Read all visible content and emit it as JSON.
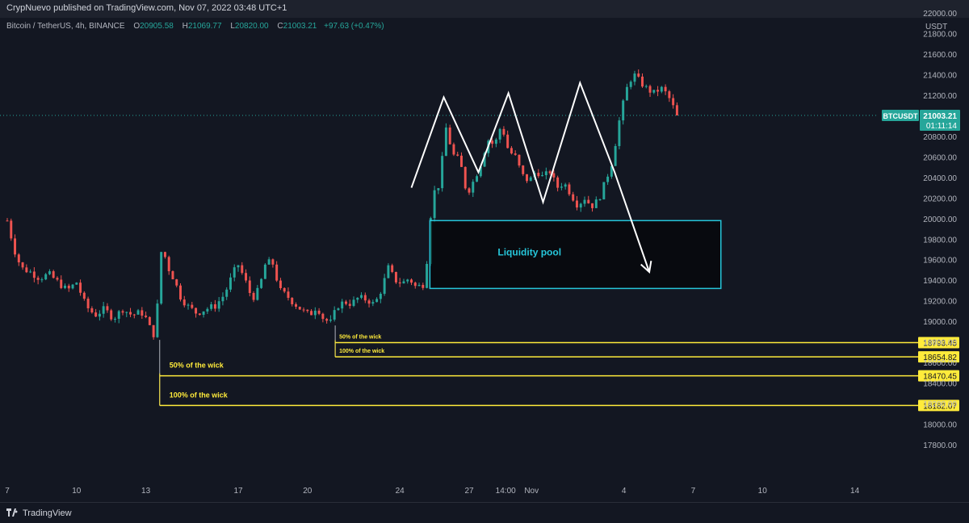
{
  "header": {
    "publisher": "CrypNuevo published on TradingView.com, Nov 07, 2022 03:48 UTC+1"
  },
  "legend": {
    "symbol": "Bitcoin / TetherUS, 4h, BINANCE",
    "open_label": "O",
    "open": "20905.58",
    "high_label": "H",
    "high": "21069.77",
    "low_label": "L",
    "low": "20820.00",
    "close_label": "C",
    "close": "21003.21",
    "change": "+97.63 (+0.47%)"
  },
  "footer": {
    "logo_text": "TradingView",
    "logo_icon": "tradingview-logo-icon"
  },
  "colors": {
    "background": "#131722",
    "up": "#26a69a",
    "down": "#ef5350",
    "level": "#ffeb3b",
    "pool": "#26c6da",
    "pattern": "#ffffff",
    "axis_text": "#b2b5be"
  },
  "chart_data": {
    "type": "candlestick",
    "currency": "USDT",
    "timeframe": "4h",
    "ylim": [
      17600,
      22000
    ],
    "y_ticks": [
      "22000.00",
      "21800.00",
      "21600.00",
      "21400.00",
      "21200.00",
      "21000.00",
      "20800.00",
      "20600.00",
      "20400.00",
      "20200.00",
      "20000.00",
      "19800.00",
      "19600.00",
      "19400.00",
      "19200.00",
      "19000.00",
      "18800.00",
      "18600.00",
      "18400.00",
      "18200.00",
      "18000.00",
      "17800.00"
    ],
    "x_ticks": [
      {
        "label": "7",
        "t": 0
      },
      {
        "label": "10",
        "t": 3
      },
      {
        "label": "13",
        "t": 6
      },
      {
        "label": "17",
        "t": 10
      },
      {
        "label": "20",
        "t": 13
      },
      {
        "label": "24",
        "t": 17
      },
      {
        "label": "27",
        "t": 20
      },
      {
        "label": "14:00",
        "t": 21.58
      },
      {
        "label": "Nov",
        "t": 22.7
      },
      {
        "label": "4",
        "t": 26.7
      },
      {
        "label": "7",
        "t": 29.7
      },
      {
        "label": "10",
        "t": 32.7
      },
      {
        "label": "14",
        "t": 36.7
      }
    ],
    "last_price": {
      "symbol": "BTCUSDT",
      "price": "21003.21",
      "countdown": "01:11:14",
      "value": 21003.21
    },
    "price_path": [
      [
        0.0,
        19980
      ],
      [
        0.3,
        19700
      ],
      [
        0.6,
        19520
      ],
      [
        1.0,
        19480
      ],
      [
        1.4,
        19420
      ],
      [
        1.8,
        19460
      ],
      [
        2.2,
        19380
      ],
      [
        2.6,
        19300
      ],
      [
        3.0,
        19380
      ],
      [
        3.4,
        19150
      ],
      [
        3.8,
        19060
      ],
      [
        4.2,
        19120
      ],
      [
        4.6,
        19030
      ],
      [
        5.0,
        19120
      ],
      [
        5.4,
        19060
      ],
      [
        5.8,
        19090
      ],
      [
        6.1,
        19000
      ],
      [
        6.3,
        18820
      ],
      [
        6.5,
        19150
      ],
      [
        6.7,
        19780
      ],
      [
        6.9,
        19550
      ],
      [
        7.2,
        19420
      ],
      [
        7.5,
        19240
      ],
      [
        7.8,
        19150
      ],
      [
        8.2,
        19080
      ],
      [
        8.6,
        19120
      ],
      [
        9.0,
        19150
      ],
      [
        9.4,
        19260
      ],
      [
        9.8,
        19480
      ],
      [
        10.0,
        19550
      ],
      [
        10.3,
        19400
      ],
      [
        10.6,
        19220
      ],
      [
        10.9,
        19310
      ],
      [
        11.2,
        19580
      ],
      [
        11.5,
        19560
      ],
      [
        11.8,
        19300
      ],
      [
        12.1,
        19250
      ],
      [
        12.4,
        19180
      ],
      [
        12.8,
        19100
      ],
      [
        13.1,
        19060
      ],
      [
        13.4,
        19150
      ],
      [
        13.7,
        19020
      ],
      [
        14.0,
        18990
      ],
      [
        14.3,
        19150
      ],
      [
        14.6,
        19190
      ],
      [
        14.9,
        19170
      ],
      [
        15.2,
        19230
      ],
      [
        15.6,
        19210
      ],
      [
        15.9,
        19160
      ],
      [
        16.2,
        19310
      ],
      [
        16.5,
        19520
      ],
      [
        16.8,
        19400
      ],
      [
        17.1,
        19370
      ],
      [
        17.4,
        19420
      ],
      [
        17.7,
        19330
      ],
      [
        18.0,
        19360
      ],
      [
        18.2,
        19640
      ],
      [
        18.4,
        20230
      ],
      [
        18.7,
        20330
      ],
      [
        19.0,
        20880
      ],
      [
        19.3,
        20620
      ],
      [
        19.6,
        20560
      ],
      [
        19.9,
        20240
      ],
      [
        20.2,
        20370
      ],
      [
        20.5,
        20530
      ],
      [
        20.8,
        20770
      ],
      [
        21.1,
        20710
      ],
      [
        21.4,
        20920
      ],
      [
        21.7,
        20660
      ],
      [
        22.0,
        20600
      ],
      [
        22.3,
        20420
      ],
      [
        22.6,
        20360
      ],
      [
        22.9,
        20470
      ],
      [
        23.2,
        20400
      ],
      [
        23.5,
        20460
      ],
      [
        23.8,
        20300
      ],
      [
        24.1,
        20350
      ],
      [
        24.4,
        20240
      ],
      [
        24.7,
        20130
      ],
      [
        25.0,
        20200
      ],
      [
        25.3,
        20120
      ],
      [
        25.6,
        20180
      ],
      [
        25.9,
        20360
      ],
      [
        26.2,
        20560
      ],
      [
        26.5,
        20950
      ],
      [
        26.8,
        21250
      ],
      [
        27.1,
        21410
      ],
      [
        27.4,
        21330
      ],
      [
        27.7,
        21260
      ],
      [
        28.0,
        21220
      ],
      [
        28.3,
        21270
      ],
      [
        28.6,
        21200
      ],
      [
        29.0,
        21003
      ]
    ],
    "pattern_path": [
      [
        17.5,
        20300
      ],
      [
        18.9,
        21180
      ],
      [
        20.4,
        20450
      ],
      [
        21.7,
        21220
      ],
      [
        23.2,
        20160
      ],
      [
        24.8,
        21320
      ],
      [
        26.3,
        20450
      ],
      [
        27.8,
        19480
      ]
    ],
    "liquidity_pool": {
      "label": "Liquidity pool",
      "from": 18.3,
      "to": 30.9,
      "top": 19980,
      "bottom": 19320
    },
    "levels": [
      {
        "label": "50% of the wick",
        "price": 18793.45,
        "price_text": "18793.45",
        "from": 14.2,
        "bold": true,
        "small": true
      },
      {
        "label": "100% of the wick",
        "price": 18654.82,
        "price_text": "18654.82",
        "from": 14.2,
        "bold": true,
        "small": true
      },
      {
        "label": "50% of the wick",
        "price": 18470.45,
        "price_text": "18470.45",
        "from": 6.6,
        "bold": true,
        "small": false
      },
      {
        "label": "100% of the wick",
        "price": 18182.07,
        "price_text": "18182.07",
        "from": 6.6,
        "bold": true,
        "small": false
      }
    ],
    "wick_markers": [
      {
        "t": 6.6,
        "from": 18820,
        "to": 18182.07
      },
      {
        "t": 14.2,
        "from": 18960,
        "to": 18654.82
      }
    ],
    "candles_per_day": 6
  }
}
